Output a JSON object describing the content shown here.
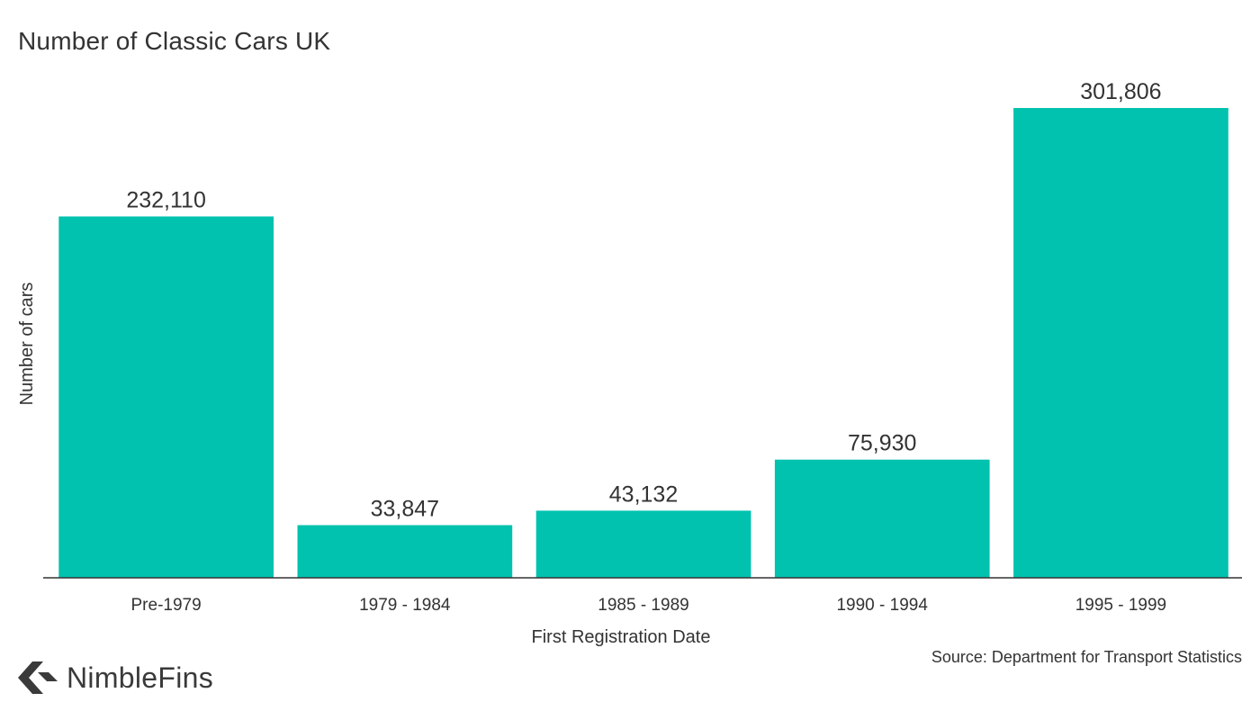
{
  "chart_data": {
    "type": "bar",
    "title": "Number of Classic Cars UK",
    "xlabel": "First Registration Date",
    "ylabel": "Number of cars",
    "categories": [
      "Pre-1979",
      "1979 - 1984",
      "1985 - 1989",
      "1990 - 1994",
      "1995 - 1999"
    ],
    "values": [
      232110,
      33847,
      43132,
      75930,
      301806
    ],
    "value_labels": [
      "232,110",
      "33,847",
      "43,132",
      "75,930",
      "301,806"
    ],
    "ylim": [
      0,
      301806
    ],
    "grid": false,
    "legend": "none",
    "bar_color": "#00C2AE"
  },
  "source": "Source: Department for Transport Statistics",
  "brand": {
    "name": "NimbleFins",
    "logo_icon": "nimblefins-arrow-icon",
    "color": "#3a3a3a"
  }
}
